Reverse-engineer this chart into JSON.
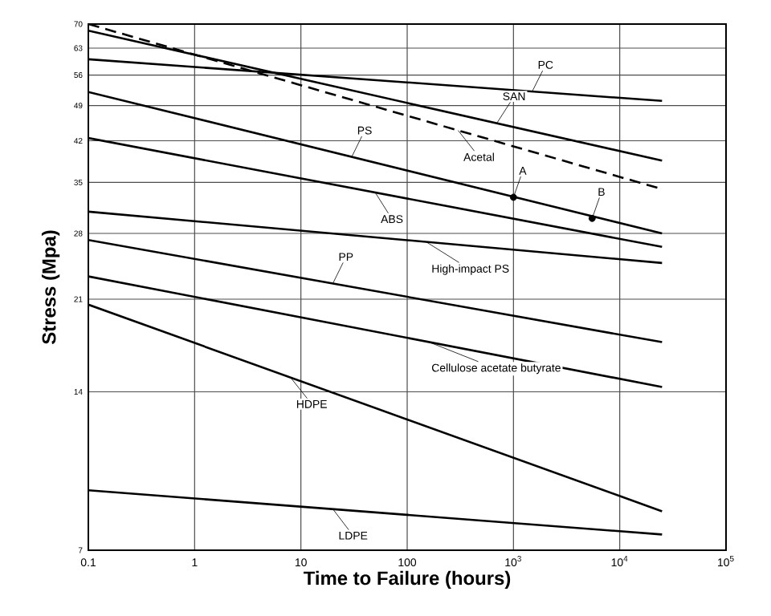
{
  "chart_data": {
    "type": "line",
    "xlabel": "Time to Failure (hours)",
    "ylabel": "Stress (Mpa)",
    "log": "xy",
    "grid": true,
    "xlim": [
      0.1,
      100000
    ],
    "ylim": [
      7,
      70
    ],
    "xticks": [
      0.1,
      1,
      10,
      100,
      {
        "value": 1000,
        "label": "10$^{3}$"
      },
      {
        "value": 10000,
        "label": "10$^{4}$"
      },
      {
        "value": 100000,
        "label": "10$^{5}$"
      }
    ],
    "yticks": [
      7,
      14,
      21,
      28,
      35,
      42,
      49,
      56,
      63,
      70
    ],
    "series": [
      {
        "color": "#000000",
        "x": [
          0.1,
          25000
        ],
        "values": [
          60,
          50
        ]
      },
      {
        "color": "#000000",
        "x": [
          0.1,
          25000
        ],
        "values": [
          68,
          38.5
        ]
      },
      {
        "color": "#000000",
        "x": [
          0.1,
          25000
        ],
        "values": [
          70,
          34
        ],
        "line_style": "dashed"
      },
      {
        "color": "#000000",
        "x": [
          0.1,
          25000
        ],
        "values": [
          52,
          28
        ]
      },
      {
        "color": "#000000",
        "x": [
          0.1,
          25000
        ],
        "values": [
          42.5,
          26.4
        ]
      },
      {
        "color": "#000000",
        "x": [
          0.1,
          25000
        ],
        "values": [
          30.8,
          24.6
        ]
      },
      {
        "color": "#000000",
        "x": [
          0.1,
          25000
        ],
        "values": [
          27.2,
          17.4
        ]
      },
      {
        "color": "#000000",
        "x": [
          0.1,
          25000
        ],
        "values": [
          23.2,
          14.3
        ]
      },
      {
        "color": "#000000",
        "x": [
          0.1,
          25000
        ],
        "values": [
          20.5,
          8.3
        ]
      },
      {
        "color": "#000000",
        "x": [
          0.1,
          25000
        ],
        "values": [
          9.1,
          7.5
        ]
      },
      {
        "type": "scatter",
        "marker": "circle",
        "color": "#000000",
        "x": [
          1000,
          5500
        ],
        "values": [
          32.8,
          29.9
        ]
      }
    ],
    "annotations": [
      {
        "text": "PC",
        "x": 1500,
        "y": 52.1
      },
      {
        "text": "SAN",
        "x": 700,
        "y": 45.4
      },
      {
        "text": "Acetal",
        "x": 300,
        "y": 44
      },
      {
        "text": "PS",
        "x": 30,
        "y": 39.1
      },
      {
        "text": "ABS",
        "x": 50,
        "y": 33.5
      },
      {
        "text": "High-impact PS",
        "x": 150,
        "y": 27
      },
      {
        "text": "PP",
        "x": 20,
        "y": 22.5
      },
      {
        "text": "Cellulose acetate butyrate",
        "x": 150,
        "y": 17.5
      },
      {
        "text": "HDPE",
        "x": 8,
        "y": 14.9
      },
      {
        "text": "LDPE",
        "x": 20,
        "y": 8.38
      },
      {
        "text": "A",
        "x": 1000,
        "y": 32.8
      },
      {
        "text": "B",
        "x": 5500,
        "y": 29.9
      }
    ]
  }
}
